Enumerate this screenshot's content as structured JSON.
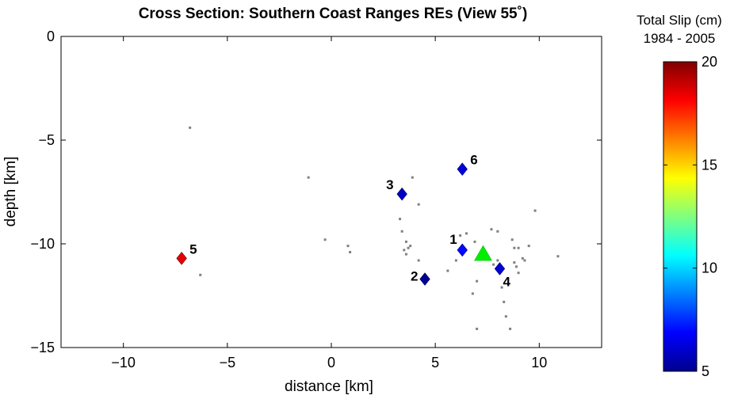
{
  "chart_data": {
    "type": "scatter",
    "title": "Cross Section: Southern Coast Ranges REs (View 55˚)",
    "xlabel": "distance [km]",
    "ylabel": "depth [km]",
    "xlim": [
      -13,
      13
    ],
    "ylim": [
      -15,
      0
    ],
    "xticks": [
      -10,
      -5,
      0,
      5,
      10
    ],
    "xtick_labels": [
      "−10",
      "−5",
      "0",
      "5",
      "10"
    ],
    "yticks": [
      0,
      -5,
      -10,
      -15
    ],
    "ytick_labels": [
      "0",
      "−5",
      "−10",
      "−15"
    ],
    "grid": false,
    "colorbar": {
      "title_line1": "Total Slip (cm)",
      "title_line2": "1984 - 2005",
      "range": [
        5,
        20
      ],
      "ticks": [
        20,
        15,
        10,
        5
      ],
      "tick_labels": [
        "20",
        "15",
        "10",
        "5"
      ],
      "colormap": "jet"
    },
    "repeating_events": [
      {
        "label": "1",
        "x": 6.3,
        "y": -10.3,
        "slip": 7.0
      },
      {
        "label": "2",
        "x": 4.5,
        "y": -11.7,
        "slip": 5.3
      },
      {
        "label": "3",
        "x": 3.4,
        "y": -7.6,
        "slip": 6.0
      },
      {
        "label": "4",
        "x": 8.1,
        "y": -11.2,
        "slip": 6.2
      },
      {
        "label": "5",
        "x": -7.2,
        "y": -10.7,
        "slip": 18.5
      },
      {
        "label": "6",
        "x": 6.3,
        "y": -6.4,
        "slip": 6.3
      }
    ],
    "mainshock": {
      "x": 7.3,
      "y": -10.5,
      "color": "#00ee00"
    },
    "background_events": [
      [
        -6.8,
        -4.4
      ],
      [
        -6.3,
        -11.5
      ],
      [
        -1.1,
        -6.8
      ],
      [
        -0.3,
        -9.8
      ],
      [
        0.8,
        -10.1
      ],
      [
        0.9,
        -10.4
      ],
      [
        3.3,
        -8.8
      ],
      [
        3.4,
        -9.4
      ],
      [
        3.5,
        -10.3
      ],
      [
        3.6,
        -9.9
      ],
      [
        3.6,
        -10.5
      ],
      [
        3.7,
        -10.2
      ],
      [
        3.8,
        -10.1
      ],
      [
        3.9,
        -6.8
      ],
      [
        4.2,
        -8.1
      ],
      [
        4.2,
        -10.8
      ],
      [
        5.6,
        -11.3
      ],
      [
        6.0,
        -10.8
      ],
      [
        6.2,
        -9.6
      ],
      [
        6.5,
        -9.5
      ],
      [
        6.8,
        -12.4
      ],
      [
        6.9,
        -9.9
      ],
      [
        7.0,
        -11.8
      ],
      [
        7.0,
        -14.1
      ],
      [
        7.4,
        -10.7
      ],
      [
        7.7,
        -9.3
      ],
      [
        7.8,
        -11.0
      ],
      [
        8.0,
        -10.8
      ],
      [
        8.0,
        -9.4
      ],
      [
        8.2,
        -12.1
      ],
      [
        8.3,
        -12.8
      ],
      [
        8.4,
        -13.5
      ],
      [
        8.6,
        -14.1
      ],
      [
        8.7,
        -9.8
      ],
      [
        8.8,
        -10.9
      ],
      [
        8.8,
        -10.2
      ],
      [
        8.9,
        -11.1
      ],
      [
        9.0,
        -11.4
      ],
      [
        9.0,
        -10.2
      ],
      [
        9.2,
        -10.7
      ],
      [
        9.3,
        -10.8
      ],
      [
        9.5,
        -10.1
      ],
      [
        9.8,
        -8.4
      ],
      [
        10.9,
        -10.6
      ]
    ],
    "colors": {
      "background_event": "#808080"
    }
  }
}
